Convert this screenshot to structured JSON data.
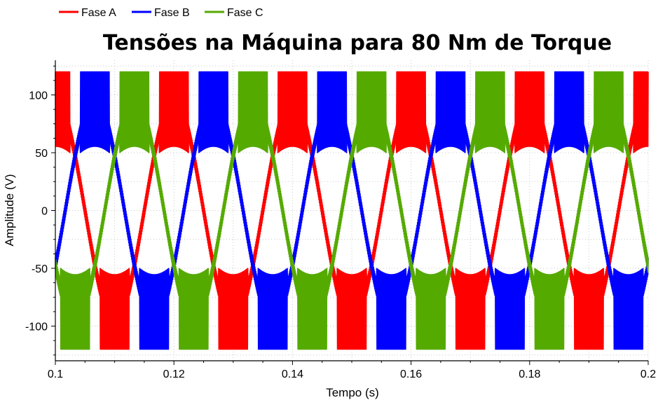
{
  "chart_data": {
    "type": "line",
    "title": "Tensões na Máquina para 80 Nm de Torque",
    "xlabel": "Tempo (s)",
    "ylabel": "Amplitude (V)",
    "xlim": [
      0.1,
      0.2
    ],
    "ylim": [
      -130,
      130
    ],
    "xticks": [
      0.1,
      0.12,
      0.14,
      0.16,
      0.18,
      0.2
    ],
    "xtick_labels": [
      "0.1",
      "0.12",
      "0.14",
      "0.16",
      "0.18",
      "0.2"
    ],
    "yticks": [
      -100,
      -50,
      0,
      50,
      100
    ],
    "ytick_labels": [
      "-100",
      "-50",
      "0",
      "50",
      "100"
    ],
    "grid": true,
    "legend_position": "top-left",
    "fundamental_frequency_hz": 50,
    "fundamental_amplitude_v": 95,
    "switching_band_v": [
      50,
      120
    ],
    "series": [
      {
        "name": "Fase A",
        "color": "#ff0000",
        "phase_deg": 0
      },
      {
        "name": "Fase B",
        "color": "#0000ff",
        "phase_deg": -120
      },
      {
        "name": "Fase C",
        "color": "#55aa00",
        "phase_deg": 120
      }
    ]
  }
}
